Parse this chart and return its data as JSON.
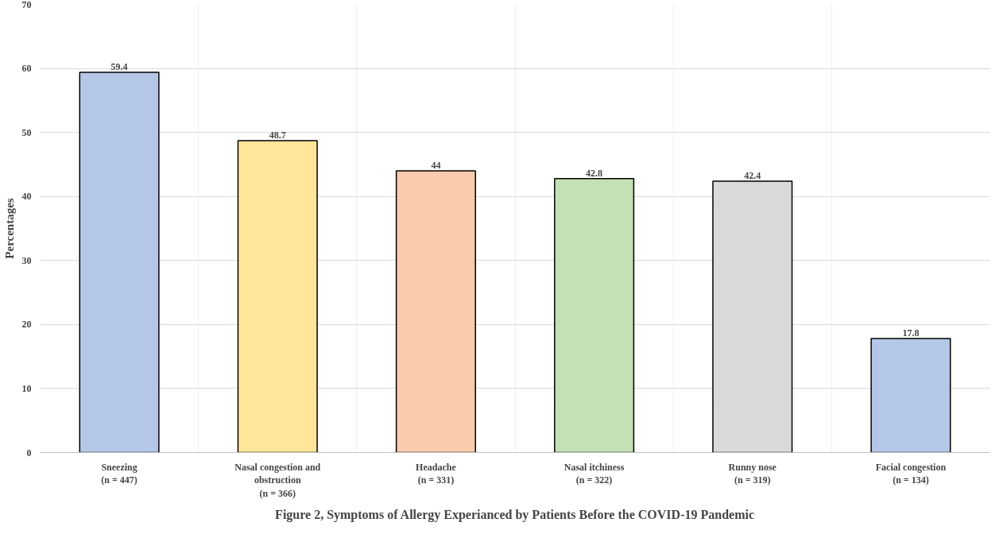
{
  "chart_data": {
    "type": "bar",
    "title": "Figure 2, Symptoms of Allergy Experianced by Patients Before the COVID-19 Pandemic",
    "ylabel": "Percentages",
    "categories": [
      "Sneezing\n(n = 447)",
      "Nasal congestion and\nobstruction\n(n = 366)",
      "Headache\n(n = 331)",
      "Nasal itchiness\n(n = 322)",
      "Runny nose\n(n = 319)",
      "Facial congestion\n(n = 134)"
    ],
    "values": [
      59.4,
      48.7,
      44,
      42.8,
      42.4,
      17.8
    ],
    "colors": [
      "#b4c7e7",
      "#ffe699",
      "#f8cbad",
      "#c5e0b4",
      "#d9d9d9",
      "#b4c7e7"
    ],
    "ylim": [
      0,
      70
    ],
    "yticks": [
      0,
      10,
      20,
      30,
      40,
      50,
      60,
      70
    ],
    "grid": true,
    "data_labels": true
  }
}
